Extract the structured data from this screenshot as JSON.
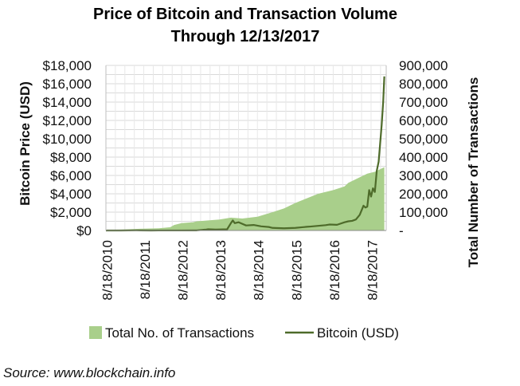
{
  "chart_data": {
    "type": "area+line",
    "title_lines": [
      "Price of Bitcoin and Transaction Volume",
      "Through 12/13/2017"
    ],
    "ylabel_left": "Bitcoin Price (USD)",
    "ylabel_right": "Total Number of Transactions",
    "ylim_left": [
      0,
      18000
    ],
    "ylim_right": [
      0,
      900000
    ],
    "yticks_left": [
      "$0",
      "$2,000",
      "$4,000",
      "$6,000",
      "$8,000",
      "$10,000",
      "$12,000",
      "$14,000",
      "$16,000",
      "$18,000"
    ],
    "yticks_right": [
      "-",
      "100,000",
      "200,000",
      "300,000",
      "400,000",
      "500,000",
      "600,000",
      "700,000",
      "800,000",
      "900,000"
    ],
    "xticks": [
      "8/18/2010",
      "8/18/2011",
      "8/18/2012",
      "8/18/2013",
      "8/18/2014",
      "8/18/2015",
      "8/18/2016",
      "8/18/2017"
    ],
    "x_range": [
      2010.6,
      2018.0
    ],
    "grid": true,
    "legend_position": "bottom",
    "series": [
      {
        "name": "Total No. of Transactions",
        "axis": "right",
        "type": "area",
        "color": "#a9cf8b",
        "x": [
          2010.6,
          2011.0,
          2011.5,
          2012.0,
          2012.3,
          2012.4,
          2012.6,
          2012.9,
          2013.0,
          2013.3,
          2013.6,
          2013.9,
          2014.2,
          2014.6,
          2015.0,
          2015.3,
          2015.6,
          2015.9,
          2016.2,
          2016.6,
          2016.9,
          2017.0,
          2017.2,
          2017.4,
          2017.5,
          2017.7,
          2017.8,
          2017.95
        ],
        "values": [
          3000,
          5000,
          9000,
          12000,
          18000,
          30000,
          40000,
          45000,
          50000,
          55000,
          60000,
          70000,
          65000,
          75000,
          100000,
          120000,
          150000,
          175000,
          200000,
          220000,
          240000,
          260000,
          280000,
          300000,
          310000,
          320000,
          330000,
          345000
        ]
      },
      {
        "name": "Bitcoin (USD)",
        "axis": "left",
        "type": "line",
        "color": "#4e6b2a",
        "x": [
          2010.6,
          2011.0,
          2011.4,
          2011.5,
          2011.8,
          2012.0,
          2012.5,
          2012.9,
          2013.0,
          2013.25,
          2013.3,
          2013.5,
          2013.8,
          2013.9,
          2013.95,
          2014.0,
          2014.1,
          2014.3,
          2014.5,
          2014.7,
          2014.9,
          2015.0,
          2015.3,
          2015.6,
          2015.9,
          2016.0,
          2016.4,
          2016.5,
          2016.7,
          2016.9,
          2017.0,
          2017.1,
          2017.2,
          2017.3,
          2017.4,
          2017.45,
          2017.5,
          2017.55,
          2017.6,
          2017.65,
          2017.7,
          2017.75,
          2017.8,
          2017.85,
          2017.88,
          2017.92,
          2017.95
        ],
        "values": [
          0,
          1,
          15,
          14,
          3,
          6,
          7,
          12,
          14,
          100,
          130,
          100,
          130,
          800,
          1100,
          800,
          900,
          550,
          600,
          450,
          380,
          280,
          240,
          280,
          400,
          430,
          580,
          650,
          620,
          900,
          1000,
          1050,
          1200,
          1700,
          2700,
          2500,
          2600,
          4400,
          3700,
          4600,
          4200,
          6500,
          7500,
          10000,
          11500,
          14000,
          16800
        ]
      }
    ]
  },
  "source": "Source: www.blockchain.info"
}
